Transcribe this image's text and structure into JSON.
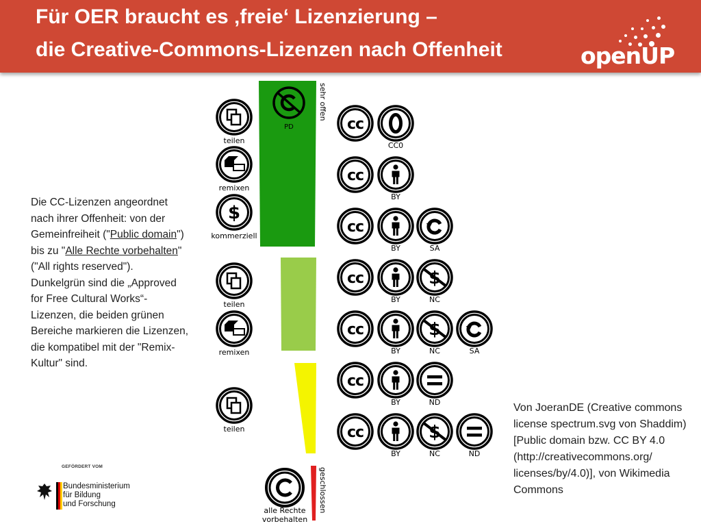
{
  "title": {
    "line1": "Für OER braucht es ‚freie‘ Lizenzierung –",
    "line2": "die Creative-Commons-Lizenzen nach Offenheit"
  },
  "logo": {
    "text": "openUP"
  },
  "description": {
    "p1": "Die CC-Lizenzen angeordnet nach ihrer Offenheit: von der Gemeinfreiheit (\"",
    "link1": "Public domain",
    "p2": "\") bis zu \"",
    "link2": "Alle Rechte vorbehalten",
    "p3": "\" (\"All rights reserved\"). Dunkelgrün sind die „Approved for Free Cultural Works“-Lizenzen, die beiden grünen Bereiche markieren die Lizenzen, die kompatibel mit der \"Remix-Kultur\" sind."
  },
  "credit": "Von JoeranDE (Creative commons license spectrum.svg von Shaddim) [Public domain bzw. CC BY 4.0 (http://creativecommons.org/ licenses/by/4.0)], von Wikimedia Commons",
  "spectrum": {
    "top_label": "sehr offen",
    "bottom_label": "geschlossen",
    "pd_label": "PD",
    "all_rights_line1": "alle Rechte",
    "all_rights_line2": "vorbehalten",
    "colors": {
      "dark_green": "#1a9a10",
      "light_green": "#99cc4a",
      "yellow": "#f4f400",
      "red": "#e02020"
    },
    "freedoms": [
      {
        "icon": "share-icon",
        "label": "teilen"
      },
      {
        "icon": "remix-icon",
        "label": "remixen"
      },
      {
        "icon": "dollar-icon",
        "label": "kommerziell"
      },
      {
        "icon": "share-icon",
        "label": "teilen"
      },
      {
        "icon": "remix-icon",
        "label": "remixen"
      },
      {
        "icon": "share-icon",
        "label": "teilen"
      }
    ],
    "licenses": [
      {
        "icons": [
          "cc-icon",
          "zero-icon"
        ],
        "labels": [
          "",
          "CC0"
        ]
      },
      {
        "icons": [
          "cc-icon",
          "by-icon"
        ],
        "labels": [
          "",
          "BY"
        ]
      },
      {
        "icons": [
          "cc-icon",
          "by-icon",
          "sa-icon"
        ],
        "labels": [
          "",
          "BY",
          "SA"
        ]
      },
      {
        "icons": [
          "cc-icon",
          "by-icon",
          "nc-icon"
        ],
        "labels": [
          "",
          "BY",
          "NC"
        ]
      },
      {
        "icons": [
          "cc-icon",
          "by-icon",
          "nc-icon",
          "sa-icon"
        ],
        "labels": [
          "",
          "BY",
          "NC",
          "SA"
        ]
      },
      {
        "icons": [
          "cc-icon",
          "by-icon",
          "nd-icon"
        ],
        "labels": [
          "",
          "BY",
          "ND"
        ]
      },
      {
        "icons": [
          "cc-icon",
          "by-icon",
          "nc-icon",
          "nd-icon"
        ],
        "labels": [
          "",
          "BY",
          "NC",
          "ND"
        ]
      }
    ]
  },
  "funder": {
    "small": "GEFÖRDERT VOM",
    "line1": "Bundesministerium",
    "line2": "für Bildung",
    "line3": "und Forschung"
  }
}
